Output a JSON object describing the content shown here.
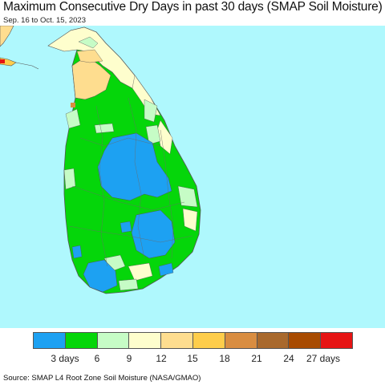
{
  "header": {
    "title": "Maximum Consecutive Dry Days in past 30 days (SMAP Soil Moisture)",
    "subtitle": "Sep. 16 to Oct. 15, 2023"
  },
  "legend": {
    "colors": [
      "#1da1f2",
      "#05d60a",
      "#c6fcc6",
      "#fefecd",
      "#fedd8f",
      "#fecd4b",
      "#d98d41",
      "#a9692d",
      "#a84b01",
      "#e61414"
    ],
    "labels": [
      "3 days",
      "6",
      "9",
      "12",
      "15",
      "18",
      "21",
      "24",
      "27 days"
    ]
  },
  "map": {
    "colors": {
      "ocean": "#aff8fd",
      "wet": "#1da1f2",
      "green": "#05d60a",
      "pale_green": "#c6fcc6",
      "pale_yellow": "#fefecd",
      "peach": "#fedd8f",
      "orange": "#fecd4b",
      "red": "#e61414",
      "brown": "#d98d41"
    }
  },
  "footer": {
    "source": "Source: SMAP L4 Root Zone Soil Moisture (NASA/GMAO)"
  }
}
